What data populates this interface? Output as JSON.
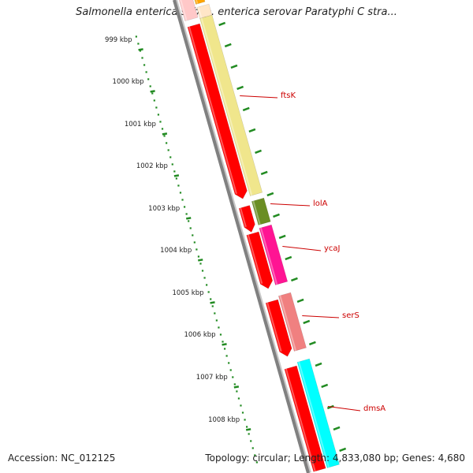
{
  "title": "Salmonella enterica subsp. enterica serovar Paratyphi C stra...",
  "footer": {
    "accession": "Accession: NC_012125",
    "summary": "Topology: circular; Length: 4,833,080 bp; Genes: 4,680"
  },
  "ruler": {
    "labels": [
      "999 kbp",
      "1000 kbp",
      "1001 kbp",
      "1002 kbp",
      "1003 kbp",
      "1004 kbp",
      "1005 kbp",
      "1006 kbp",
      "1007 kbp",
      "1008 kbp"
    ],
    "tick_color": "#228b22"
  },
  "backbone_color": "#808080",
  "genes": [
    {
      "name": "",
      "color": "#ffa500",
      "strand": "cds"
    },
    {
      "name": "ftsK",
      "color": "#f0e68c",
      "strand": "cds"
    },
    {
      "name": "lolA",
      "color": "#6b8e23",
      "strand": "cds"
    },
    {
      "name": "ycaJ",
      "color": "#ff1493",
      "strand": "cds"
    },
    {
      "name": "serS",
      "color": "#f08080",
      "strand": "cds"
    },
    {
      "name": "dmsA",
      "color": "#00ffff",
      "strand": "cds"
    }
  ],
  "label_color": "#cc0000",
  "orf_color": "#ff0000"
}
